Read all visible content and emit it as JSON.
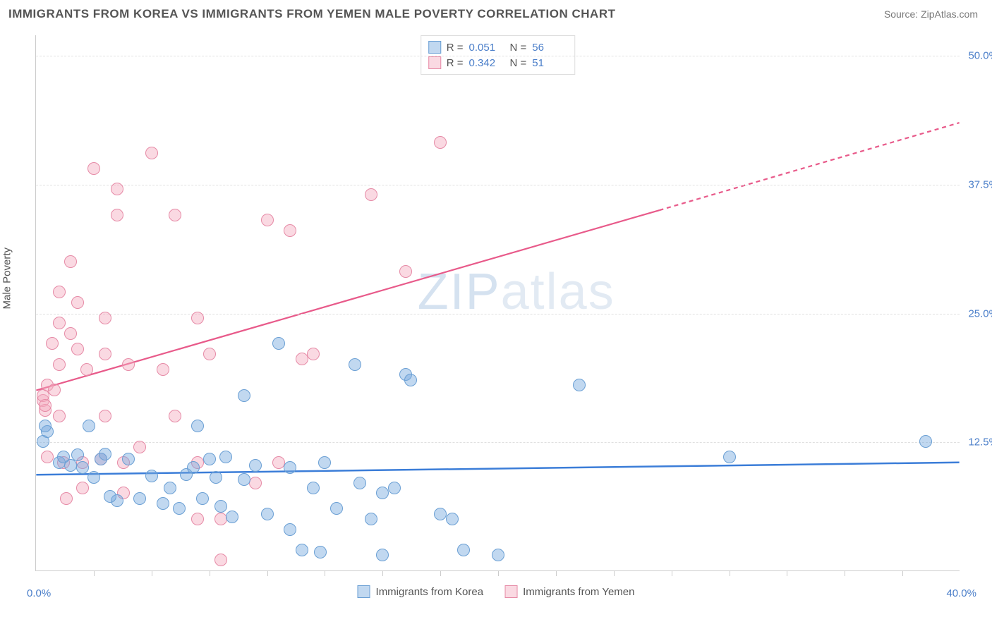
{
  "title": "IMMIGRANTS FROM KOREA VS IMMIGRANTS FROM YEMEN MALE POVERTY CORRELATION CHART",
  "source": "Source: ZipAtlas.com",
  "watermark": {
    "zip": "ZIP",
    "atlas": "atlas"
  },
  "y_axis_label": "Male Poverty",
  "x_axis": {
    "min": 0,
    "max": 40,
    "left_label": "0.0%",
    "right_label": "40.0%",
    "tick_step": 2.5
  },
  "y_axis": {
    "min": 0,
    "max": 52,
    "ticks": [
      {
        "value": 12.5,
        "label": "12.5%"
      },
      {
        "value": 25.0,
        "label": "25.0%"
      },
      {
        "value": 37.5,
        "label": "37.5%"
      },
      {
        "value": 50.0,
        "label": "50.0%"
      }
    ]
  },
  "colors": {
    "blue_fill": "rgba(118,168,222,0.45)",
    "blue_stroke": "#6a9fd4",
    "pink_fill": "rgba(244,170,190,0.45)",
    "pink_stroke": "#e68aa6",
    "blue_line": "#3b7dd8",
    "pink_line": "#e85a8a",
    "grid": "#e0e0e0",
    "axis_text": "#4a7ec9"
  },
  "legend_top": {
    "rows": [
      {
        "swatch_fill": "rgba(118,168,222,0.45)",
        "swatch_stroke": "#6a9fd4",
        "r_label": "R =",
        "r_val": "0.051",
        "n_label": "N =",
        "n_val": "56"
      },
      {
        "swatch_fill": "rgba(244,170,190,0.45)",
        "swatch_stroke": "#e68aa6",
        "r_label": "R =",
        "r_val": "0.342",
        "n_label": "N =",
        "n_val": "51"
      }
    ]
  },
  "legend_bottom": {
    "items": [
      {
        "swatch_fill": "rgba(118,168,222,0.45)",
        "swatch_stroke": "#6a9fd4",
        "label": "Immigrants from Korea"
      },
      {
        "swatch_fill": "rgba(244,170,190,0.45)",
        "swatch_stroke": "#e68aa6",
        "label": "Immigrants from Yemen"
      }
    ]
  },
  "series": {
    "korea": {
      "fill": "rgba(118,168,222,0.45)",
      "stroke": "#6a9fd4",
      "point_radius": 9,
      "trend": {
        "y_at_x0": 9.3,
        "y_at_x40": 10.5,
        "color": "#3b7dd8",
        "width": 2.5
      },
      "points": [
        [
          0.3,
          12.5
        ],
        [
          0.5,
          13.5
        ],
        [
          0.4,
          14.0
        ],
        [
          1.0,
          10.5
        ],
        [
          1.2,
          11.0
        ],
        [
          1.5,
          10.2
        ],
        [
          1.8,
          11.2
        ],
        [
          2.0,
          10.0
        ],
        [
          2.3,
          14.0
        ],
        [
          2.5,
          9.0
        ],
        [
          2.8,
          10.8
        ],
        [
          3.0,
          11.3
        ],
        [
          3.5,
          6.8
        ],
        [
          3.2,
          7.2
        ],
        [
          4.0,
          10.8
        ],
        [
          4.5,
          7.0
        ],
        [
          5.0,
          9.2
        ],
        [
          5.5,
          6.5
        ],
        [
          5.8,
          8.0
        ],
        [
          6.2,
          6.0
        ],
        [
          6.5,
          9.3
        ],
        [
          7.0,
          14.0
        ],
        [
          6.8,
          10.0
        ],
        [
          7.2,
          7.0
        ],
        [
          7.5,
          10.8
        ],
        [
          8.0,
          6.2
        ],
        [
          7.8,
          9.0
        ],
        [
          8.2,
          11.0
        ],
        [
          8.5,
          5.2
        ],
        [
          9.0,
          17.0
        ],
        [
          9.0,
          8.8
        ],
        [
          9.5,
          10.2
        ],
        [
          10.0,
          5.5
        ],
        [
          10.5,
          22.0
        ],
        [
          11.0,
          4.0
        ],
        [
          11.0,
          10.0
        ],
        [
          11.5,
          2.0
        ],
        [
          12.0,
          8.0
        ],
        [
          12.5,
          10.5
        ],
        [
          12.3,
          1.8
        ],
        [
          13.0,
          6.0
        ],
        [
          13.8,
          20.0
        ],
        [
          14.0,
          8.5
        ],
        [
          15.0,
          7.5
        ],
        [
          15.0,
          1.5
        ],
        [
          15.5,
          8.0
        ],
        [
          16.0,
          19.0
        ],
        [
          16.2,
          18.5
        ],
        [
          17.5,
          5.5
        ],
        [
          18.0,
          5.0
        ],
        [
          18.5,
          2.0
        ],
        [
          20.0,
          1.5
        ],
        [
          23.5,
          18.0
        ],
        [
          30.0,
          11.0
        ],
        [
          38.5,
          12.5
        ],
        [
          14.5,
          5.0
        ]
      ]
    },
    "yemen": {
      "fill": "rgba(244,170,190,0.45)",
      "stroke": "#e68aa6",
      "point_radius": 9,
      "trend": {
        "y_at_x0": 17.5,
        "y_at_x27": 35.0,
        "y_at_x40": 43.5,
        "color": "#e85a8a",
        "width": 2.2
      },
      "points": [
        [
          0.3,
          16.5
        ],
        [
          0.3,
          17.0
        ],
        [
          0.4,
          15.5
        ],
        [
          0.4,
          16.0
        ],
        [
          0.5,
          18.0
        ],
        [
          0.5,
          11.0
        ],
        [
          0.8,
          17.5
        ],
        [
          0.7,
          22.0
        ],
        [
          1.0,
          27.0
        ],
        [
          1.0,
          24.0
        ],
        [
          1.0,
          20.0
        ],
        [
          1.0,
          15.0
        ],
        [
          1.2,
          10.5
        ],
        [
          1.3,
          7.0
        ],
        [
          1.5,
          30.0
        ],
        [
          1.5,
          23.0
        ],
        [
          1.8,
          26.0
        ],
        [
          1.8,
          21.5
        ],
        [
          2.0,
          10.5
        ],
        [
          2.0,
          8.0
        ],
        [
          2.2,
          19.5
        ],
        [
          2.5,
          39.0
        ],
        [
          2.8,
          10.8
        ],
        [
          3.0,
          24.5
        ],
        [
          3.0,
          21.0
        ],
        [
          3.0,
          15.0
        ],
        [
          3.5,
          37.0
        ],
        [
          3.5,
          34.5
        ],
        [
          3.8,
          10.5
        ],
        [
          3.8,
          7.5
        ],
        [
          4.0,
          20.0
        ],
        [
          5.0,
          40.5
        ],
        [
          5.5,
          19.5
        ],
        [
          6.0,
          34.5
        ],
        [
          7.0,
          5.0
        ],
        [
          7.0,
          10.5
        ],
        [
          7.0,
          24.5
        ],
        [
          7.5,
          21.0
        ],
        [
          8.0,
          1.0
        ],
        [
          8.0,
          5.0
        ],
        [
          9.5,
          8.5
        ],
        [
          10.0,
          34.0
        ],
        [
          10.5,
          10.5
        ],
        [
          11.0,
          33.0
        ],
        [
          11.5,
          20.5
        ],
        [
          12.0,
          21.0
        ],
        [
          14.5,
          36.5
        ],
        [
          16.0,
          29.0
        ],
        [
          17.5,
          41.5
        ],
        [
          4.5,
          12.0
        ],
        [
          6.0,
          15.0
        ]
      ]
    }
  }
}
